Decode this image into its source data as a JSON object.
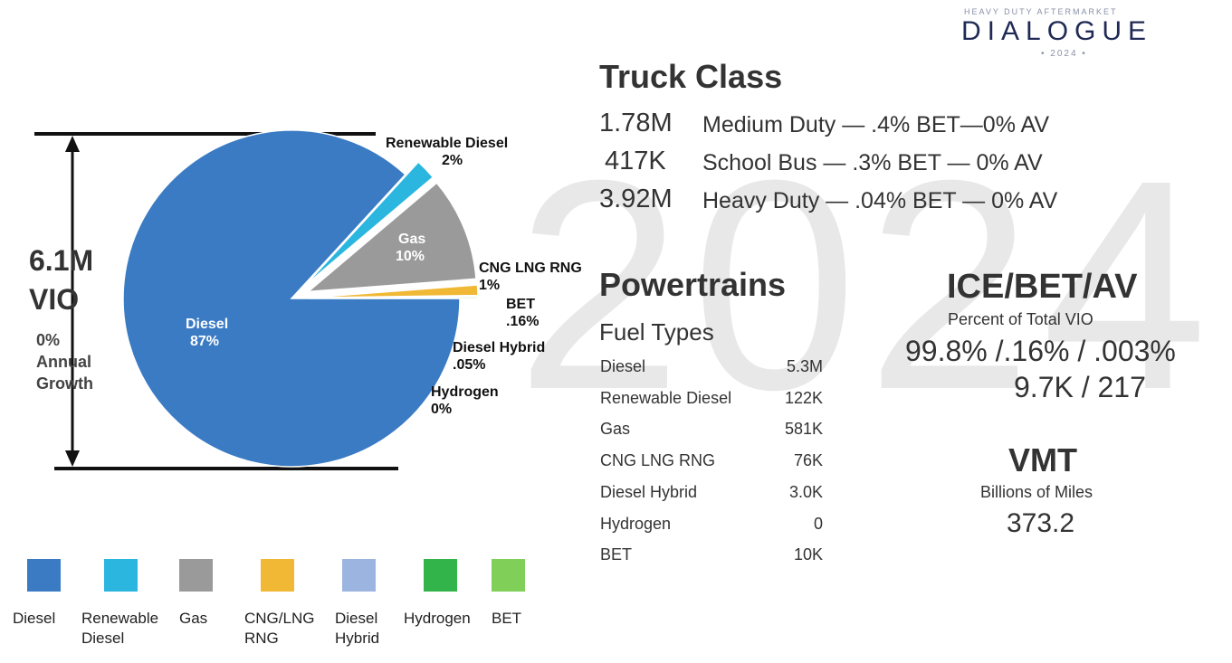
{
  "logo": {
    "top": "HEAVY DUTY AFTERMARKET",
    "name": "DIALOGUE",
    "year": "• 2024 •"
  },
  "watermark": "2024",
  "vio": {
    "value": "6.1M",
    "label": "VIO",
    "growth": [
      "0%",
      "Annual",
      "Growth"
    ]
  },
  "truck_class": {
    "title": "Truck Class",
    "rows": [
      [
        "1.78M",
        "Medium Duty — .4% BET—0% AV"
      ],
      [
        "417K",
        "School Bus — .3% BET — 0% AV"
      ],
      [
        "3.92M",
        "Heavy Duty — .04% BET — 0% AV"
      ]
    ]
  },
  "powertrains": {
    "title": "Powertrains",
    "subtitle": "Fuel Types",
    "rows": [
      [
        "Diesel",
        "5.3M"
      ],
      [
        "Renewable Diesel",
        "122K"
      ],
      [
        "Gas",
        "581K"
      ],
      [
        "CNG LNG RNG",
        "76K"
      ],
      [
        "Diesel Hybrid",
        "3.0K"
      ],
      [
        "Hydrogen",
        "0"
      ],
      [
        "BET",
        "10K"
      ]
    ]
  },
  "ice": {
    "title": "ICE/BET/AV",
    "subtitle": "Percent of Total VIO",
    "lines": [
      "99.8% /.16% / .003%",
      "9.7K / 217"
    ]
  },
  "vmt": {
    "title": "VMT",
    "subtitle": "Billions of Miles",
    "value": "373.2"
  },
  "chart_data": {
    "type": "pie",
    "categories": [
      "Diesel",
      "Renewable Diesel",
      "Gas",
      "CNG LNG RNG",
      "Diesel Hybrid",
      "Hydrogen",
      "BET"
    ],
    "values": [
      87,
      2,
      10,
      1,
      0.05,
      0,
      0.16
    ],
    "value_labels": [
      "87%",
      "2%",
      "10%",
      "1%",
      ".05%",
      "0%",
      ".16%"
    ],
    "colors": [
      "#3a7bc4",
      "#2bb6e0",
      "#9a9a9a",
      "#f0b834",
      "#9bb5e0",
      "#33b44a",
      "#80cf58"
    ],
    "legend": [
      "Diesel",
      "Renewable Diesel",
      "Gas",
      "CNG/LNG RNG",
      "Diesel Hybrid",
      "Hydrogen",
      "BET"
    ]
  }
}
